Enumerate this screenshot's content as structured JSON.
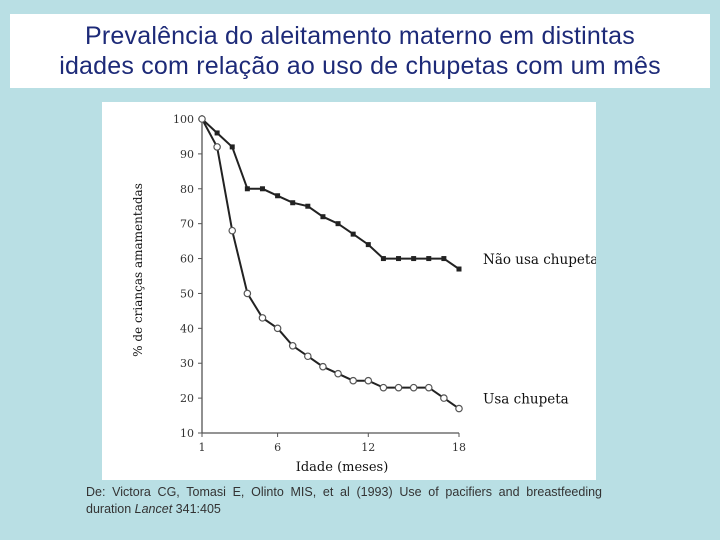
{
  "title": {
    "line1": "Prevalência do aleitamento materno em distintas",
    "line2": "idades com relação ao uso de chupetas com um mês"
  },
  "chart_data": {
    "type": "line",
    "xlabel": "Idade (meses)",
    "ylabel": "% de crianças amamentadas",
    "xlim": [
      1,
      18
    ],
    "ylim": [
      10,
      100
    ],
    "x_ticks": [
      1,
      6,
      12,
      18
    ],
    "y_ticks": [
      10,
      20,
      30,
      40,
      50,
      60,
      70,
      80,
      90,
      100
    ],
    "grid": false,
    "legend": "direct labels at line ends",
    "series": [
      {
        "name": "Não usa chupeta",
        "marker": "filled-square",
        "color": "#222222",
        "x": [
          1,
          2,
          3,
          4,
          5,
          6,
          7,
          8,
          9,
          10,
          11,
          12,
          13,
          14,
          15,
          16,
          17,
          18
        ],
        "values": [
          100,
          96,
          92,
          80,
          80,
          78,
          76,
          75,
          72,
          70,
          67,
          64,
          60,
          60,
          60,
          60,
          60,
          57
        ]
      },
      {
        "name": "Usa chupeta",
        "marker": "open-circle",
        "color": "#222222",
        "x": [
          1,
          2,
          3,
          4,
          5,
          6,
          7,
          8,
          9,
          10,
          11,
          12,
          13,
          14,
          15,
          16,
          17,
          18
        ],
        "values": [
          100,
          92,
          68,
          50,
          43,
          40,
          35,
          32,
          29,
          27,
          25,
          25,
          23,
          23,
          23,
          23,
          20,
          17
        ]
      }
    ]
  },
  "citation": {
    "prefix": "De: Victora CG, Tomasi E, Olinto MIS, et al (1993) Use of pacifiers and breastfeeding duration ",
    "journal": "Lancet",
    "suffix": " 341:405"
  }
}
